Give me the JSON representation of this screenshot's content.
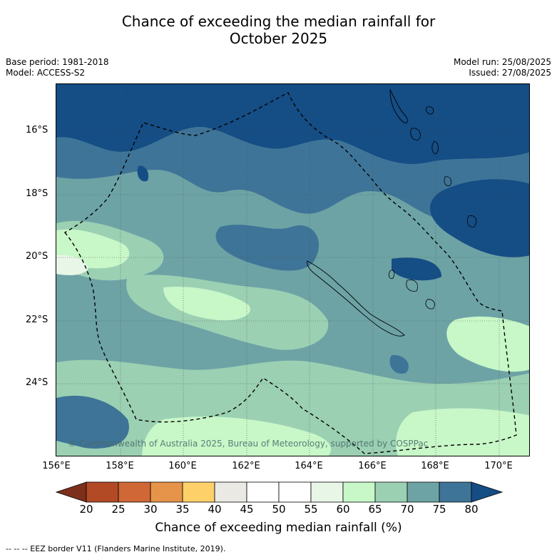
{
  "title_line1": "Chance of exceeding the median rainfall for",
  "title_line2": "October 2025",
  "meta_left": {
    "base_period": "Base period: 1981-2018",
    "model": "Model: ACCESS-S2"
  },
  "meta_right": {
    "model_run": "Model run: 25/08/2025",
    "issued": "Issued: 27/08/2025"
  },
  "lat_labels": [
    "16°S",
    "18°S",
    "20°S",
    "22°S",
    "24°S"
  ],
  "lon_labels": [
    "156°E",
    "158°E",
    "160°E",
    "162°E",
    "164°E",
    "166°E",
    "168°E",
    "170°E"
  ],
  "copyright": "© Commonwealth of Australia 2025, Bureau of Meteorology, supported by COSPPac",
  "colorbar": {
    "ticks": [
      "20",
      "25",
      "30",
      "35",
      "40",
      "45",
      "50",
      "55",
      "60",
      "65",
      "70",
      "75",
      "80"
    ],
    "colors": [
      "#7e2f1c",
      "#b24a26",
      "#cf6836",
      "#e59449",
      "#fdd06a",
      "#ebe9e4",
      "#ffffff",
      "#ffffff",
      "#e8f6e8",
      "#c8f7c8",
      "#9bd0b3",
      "#6da3a5",
      "#3e7497",
      "#154d85"
    ],
    "label": "Chance of exceeding median rainfall (%)"
  },
  "footer": "--  --  -- EEZ border V11 (Flanders Marine Institute, 2019)."
}
